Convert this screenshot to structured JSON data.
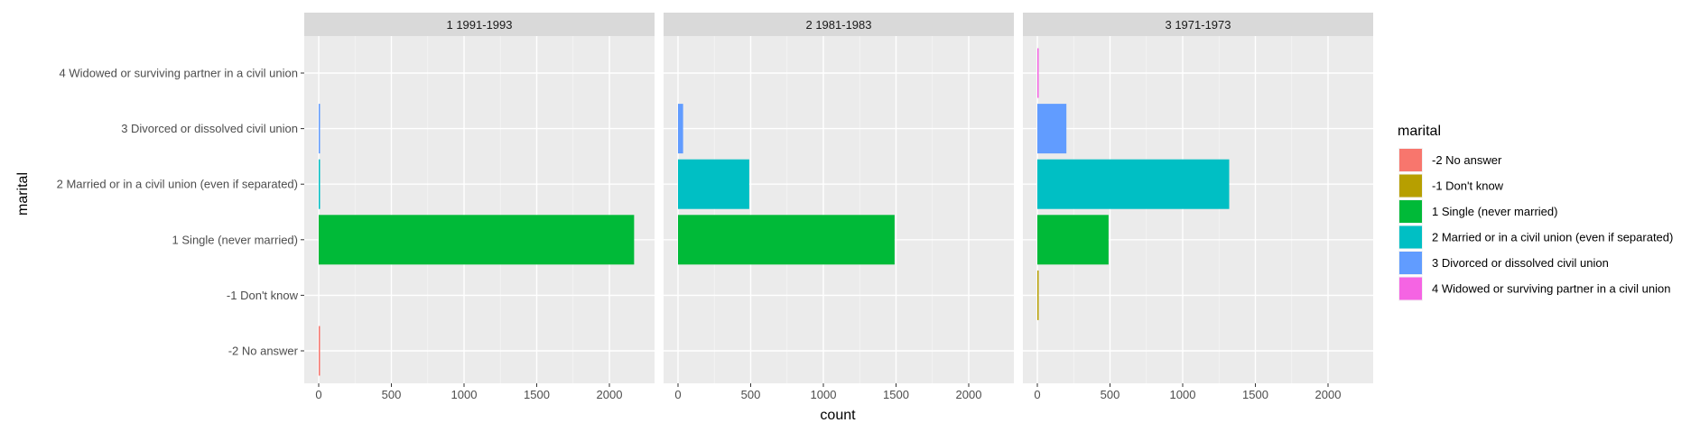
{
  "chart_data": {
    "type": "bar",
    "orientation": "horizontal",
    "xlabel": "count",
    "ylabel": "marital",
    "xlim": [
      0,
      2200
    ],
    "x_ticks": [
      0,
      500,
      1000,
      1500,
      2000
    ],
    "grid": true,
    "legend_title": "marital",
    "legend_position": "right",
    "categories": [
      "-2 No answer",
      "-1 Don't know",
      "1 Single (never married)",
      "2 Married or in a civil union (even if separated)",
      "3 Divorced or dissolved civil union",
      "4 Widowed or surviving partner in a civil union"
    ],
    "colors": [
      "#F8766D",
      "#B79F00",
      "#00BA38",
      "#00BFC4",
      "#619CFF",
      "#F564E3"
    ],
    "panels": [
      {
        "label": "1 1991-1993",
        "values": [
          5,
          0,
          2170,
          6,
          6,
          0
        ]
      },
      {
        "label": "2 1981-1983",
        "values": [
          0,
          0,
          1490,
          490,
          35,
          0
        ]
      },
      {
        "label": "3 1971-1973",
        "values": [
          0,
          5,
          490,
          1320,
          200,
          6
        ]
      }
    ]
  }
}
